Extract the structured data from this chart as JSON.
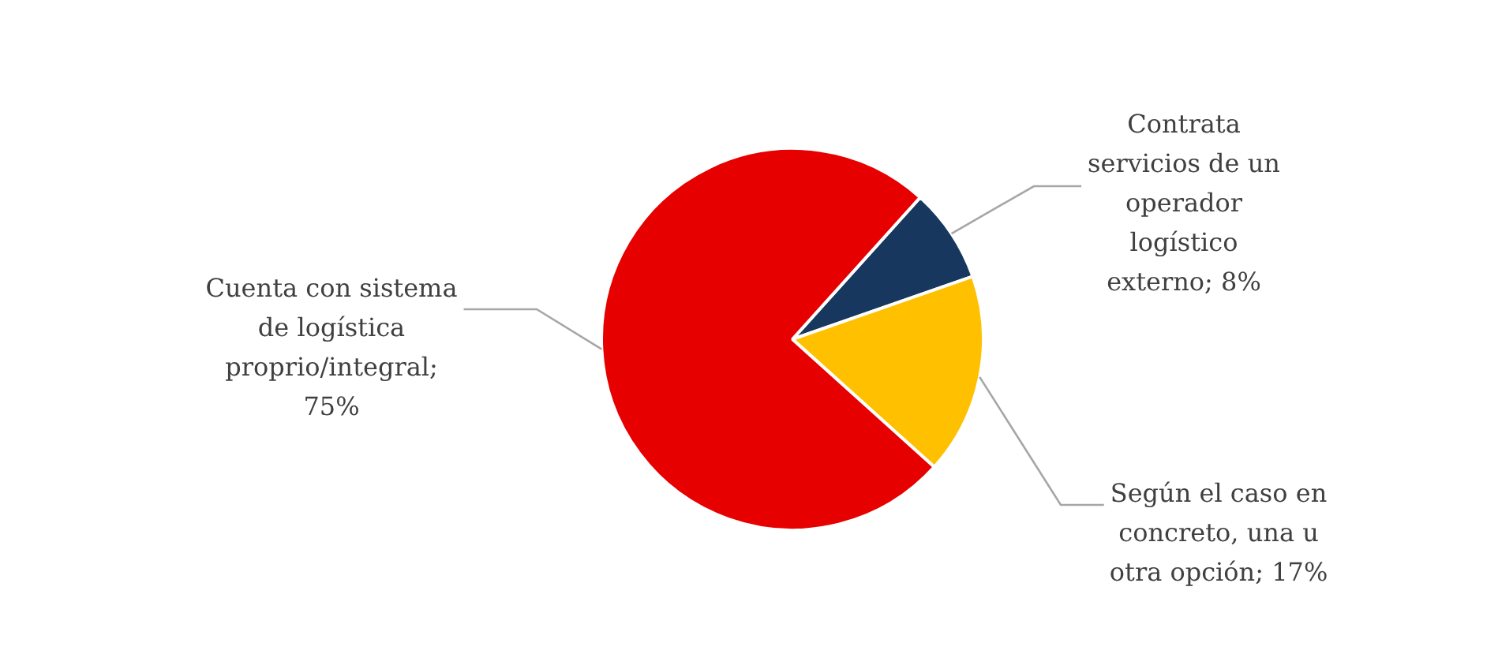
{
  "chart_data": {
    "type": "pie",
    "categories": [
      "Contrata servicios de un operador logístico externo; 8%",
      "Según el caso en concreto, una u otra opción; 17%",
      "Cuenta con sistema de logística proprio/integral; 75%"
    ],
    "values": [
      8,
      17,
      75
    ],
    "colors": [
      "#17375e",
      "#ffc000",
      "#e60000"
    ],
    "legend": false
  }
}
